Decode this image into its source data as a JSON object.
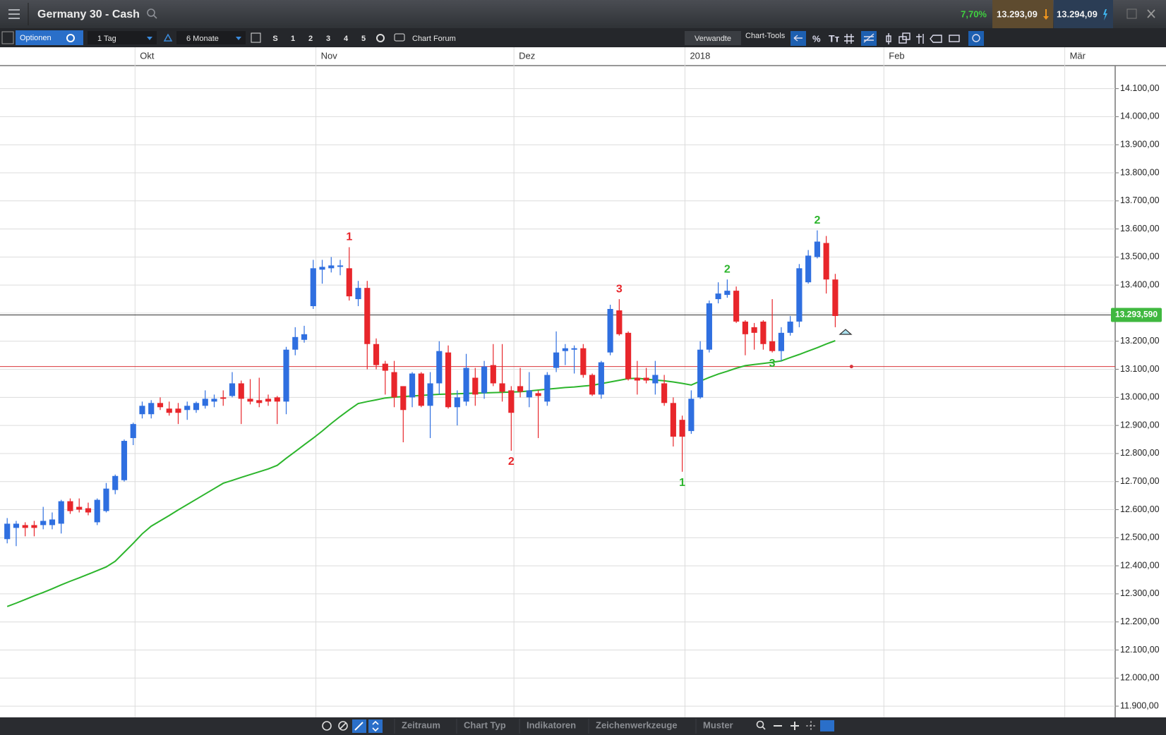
{
  "header": {
    "title": "Germany 30 - Cash",
    "change": "7,70%",
    "bid": "13.293,09",
    "ask": "13.294,09"
  },
  "toolbar": {
    "options": "Optionen",
    "interval": "1 Tag",
    "range": "6 Monate",
    "presets": [
      "S",
      "1",
      "2",
      "3",
      "4",
      "5"
    ],
    "forum": "Chart Forum",
    "related": "Verwandte",
    "tools": "Chart-Tools"
  },
  "bottom_bar": {
    "items": [
      "Zeitraum",
      "Chart Typ",
      "Indikatoren",
      "Zeichenwerkzeuge",
      "Muster"
    ]
  },
  "chart_data": {
    "type": "candlestick",
    "up_color": "#2f6fe0",
    "down_color": "#e8262b",
    "open": [
      12495,
      12535,
      12545,
      12545,
      12545,
      12545,
      12550,
      12630,
      12610,
      12605,
      12555,
      12595,
      12670,
      12705,
      12855,
      12940,
      12940,
      12980,
      12960,
      12960,
      12955,
      12955,
      12970,
      12985,
      13000,
      13005,
      13050,
      12995,
      12990,
      12995,
      13000,
      12985,
      13170,
      13205,
      13325,
      13455,
      13460,
      13465,
      13460,
      13350,
      13390,
      13190,
      13120,
      13090,
      13040,
      13000,
      13085,
      12970,
      13050,
      13160,
      12965,
      12985,
      13070,
      13015,
      13115,
      13050,
      13025,
      13040,
      13000,
      13015,
      12985,
      13105,
      13165,
      13170,
      13175,
      13080,
      13010,
      13160,
      13310,
      13230,
      13070,
      13070,
      13050,
      13050,
      12980,
      12920,
      12880,
      13000,
      13170,
      13350,
      13365,
      13380,
      13270,
      13250,
      13270,
      13200,
      13165,
      13230,
      13270,
      13410,
      13500,
      13550,
      13420
    ],
    "high": [
      12570,
      12560,
      12555,
      12560,
      12610,
      12590,
      12635,
      12640,
      12640,
      12625,
      12640,
      12695,
      12725,
      12850,
      12910,
      12985,
      12990,
      13000,
      12985,
      12980,
      12985,
      12985,
      13025,
      13010,
      13025,
      13090,
      13060,
      13065,
      13070,
      13010,
      13005,
      13180,
      13250,
      13255,
      13490,
      13490,
      13500,
      13490,
      13535,
      13415,
      13415,
      13210,
      13130,
      13130,
      13040,
      13090,
      13090,
      13090,
      13200,
      13185,
      13025,
      13155,
      13105,
      13130,
      13190,
      13190,
      13040,
      13105,
      13090,
      13025,
      13090,
      13235,
      13190,
      13185,
      13190,
      13085,
      13130,
      13330,
      13350,
      13235,
      13130,
      13105,
      13130,
      13080,
      13000,
      12935,
      13025,
      13200,
      13345,
      13410,
      13420,
      13395,
      13275,
      13265,
      13275,
      13350,
      13250,
      13290,
      13475,
      13525,
      13595,
      13575,
      13440
    ],
    "low": [
      12480,
      12470,
      12505,
      12505,
      12530,
      12530,
      12515,
      12585,
      12590,
      12580,
      12545,
      12590,
      12655,
      12700,
      12830,
      12925,
      12925,
      12955,
      12935,
      12905,
      12920,
      12945,
      12960,
      12965,
      12970,
      13000,
      12905,
      12975,
      12965,
      12970,
      12905,
      12940,
      13150,
      13195,
      13315,
      13405,
      13445,
      13435,
      13345,
      13325,
      13100,
      13100,
      13010,
      12965,
      12840,
      12965,
      12965,
      12855,
      13010,
      12960,
      12900,
      12970,
      12970,
      12995,
      13040,
      12985,
      12810,
      13000,
      12965,
      12855,
      12970,
      13090,
      13115,
      13085,
      13070,
      13005,
      12995,
      13150,
      13220,
      13060,
      13010,
      13050,
      13010,
      12970,
      12825,
      12735,
      12870,
      12995,
      13160,
      13335,
      13355,
      13265,
      13150,
      13170,
      13170,
      13160,
      13130,
      13220,
      13250,
      13405,
      13495,
      13370,
      13250
    ],
    "close": [
      12550,
      12550,
      12535,
      12535,
      12560,
      12565,
      12630,
      12595,
      12600,
      12590,
      12635,
      12675,
      12720,
      12845,
      12905,
      12970,
      12980,
      12965,
      12945,
      12945,
      12970,
      12980,
      12995,
      12995,
      12995,
      13050,
      12995,
      12985,
      12980,
      12985,
      12985,
      13170,
      13215,
      13225,
      13460,
      13465,
      13470,
      13470,
      13360,
      13390,
      13190,
      13115,
      13095,
      13000,
      12955,
      13085,
      12970,
      13050,
      13165,
      12965,
      13000,
      13105,
      13010,
      13110,
      13050,
      13020,
      12945,
      13020,
      13025,
      13005,
      13080,
      13160,
      13175,
      13175,
      13080,
      13010,
      13125,
      13315,
      13225,
      13065,
      13060,
      13060,
      13080,
      12980,
      12860,
      12860,
      12995,
      13170,
      13335,
      13370,
      13380,
      13270,
      13225,
      13230,
      13190,
      13165,
      13230,
      13270,
      13460,
      13505,
      13555,
      13420,
      13290
    ],
    "overlay": {
      "color": "#2cb52c",
      "values": [
        12255,
        12267,
        12280,
        12293,
        12305,
        12318,
        12332,
        12345,
        12357,
        12370,
        12383,
        12396,
        12416,
        12448,
        12480,
        12514,
        12541,
        12560,
        12579,
        12599,
        12618,
        12637,
        12656,
        12675,
        12694,
        12704,
        12715,
        12725,
        12735,
        12745,
        12758,
        12783,
        12807,
        12831,
        12855,
        12880,
        12907,
        12932,
        12956,
        12978,
        12985,
        12991,
        12998,
        13001,
        13003,
        13005,
        13007,
        13009,
        13011,
        13012,
        13013,
        13014,
        13015,
        13016,
        13017,
        13018,
        13019,
        13020,
        13023,
        13026,
        13029,
        13032,
        13035,
        13037,
        13040,
        13043,
        13049,
        13055,
        13061,
        13067,
        13068,
        13065,
        13062,
        13059,
        13055,
        13050,
        13044,
        13058,
        13071,
        13083,
        13093,
        13104,
        13113,
        13117,
        13121,
        13125,
        13130,
        13142,
        13153,
        13165,
        13177,
        13190,
        13202
      ]
    },
    "price_line": {
      "value": 13293.59,
      "label": "13.293,590",
      "color": "#3fb83f"
    },
    "level_line": {
      "value": 13110,
      "color": "#d9343a"
    },
    "annotations": [
      {
        "text": "1",
        "color": "#e8262b",
        "candle": 38,
        "position": "above"
      },
      {
        "text": "2",
        "color": "#e8262b",
        "candle": 56,
        "position": "below"
      },
      {
        "text": "3",
        "color": "#e8262b",
        "candle": 68,
        "position": "above"
      },
      {
        "text": "1",
        "color": "#2cb52c",
        "candle": 75,
        "position": "below"
      },
      {
        "text": "2",
        "color": "#2cb52c",
        "candle": 80,
        "position": "above"
      },
      {
        "text": "3",
        "color": "#2cb52c",
        "candle": 85,
        "position": "below"
      },
      {
        "text": "2",
        "color": "#2cb52c",
        "candle": 90,
        "position": "above"
      }
    ],
    "xlim": [
      -0.8,
      123.1
    ],
    "xticks": [
      {
        "value": 14.2,
        "label": "Okt"
      },
      {
        "value": 34.3,
        "label": "Nov"
      },
      {
        "value": 56.3,
        "label": "Dez"
      },
      {
        "value": 75.3,
        "label": "2018"
      },
      {
        "value": 97.4,
        "label": "Feb"
      },
      {
        "value": 117.5,
        "label": "Mär"
      }
    ],
    "ylim": [
      11860,
      14182
    ],
    "yticks": [
      {
        "value": 11900,
        "label": "11.900,00"
      },
      {
        "value": 12000,
        "label": "12.000,00"
      },
      {
        "value": 12100,
        "label": "12.100,00"
      },
      {
        "value": 12200,
        "label": "12.200,00"
      },
      {
        "value": 12300,
        "label": "12.300,00"
      },
      {
        "value": 12400,
        "label": "12.400,00"
      },
      {
        "value": 12500,
        "label": "12.500,00"
      },
      {
        "value": 12600,
        "label": "12.600,00"
      },
      {
        "value": 12700,
        "label": "12.700,00"
      },
      {
        "value": 12800,
        "label": "12.800,00"
      },
      {
        "value": 12900,
        "label": "12.900,00"
      },
      {
        "value": 13000,
        "label": "13.000,00"
      },
      {
        "value": 13100,
        "label": "13.100,00"
      },
      {
        "value": 13200,
        "label": "13.200,00"
      },
      {
        "value": 13300,
        "label": "13.300,00"
      },
      {
        "value": 13400,
        "label": "13.400,00"
      },
      {
        "value": 13500,
        "label": "13.500,00"
      },
      {
        "value": 13600,
        "label": "13.600,00"
      },
      {
        "value": 13700,
        "label": "13.700,00"
      },
      {
        "value": 13800,
        "label": "13.800,00"
      },
      {
        "value": 13900,
        "label": "13.900,00"
      },
      {
        "value": 14000,
        "label": "14.000,00"
      },
      {
        "value": 14100,
        "label": "14.100,00"
      }
    ],
    "grid": true
  }
}
